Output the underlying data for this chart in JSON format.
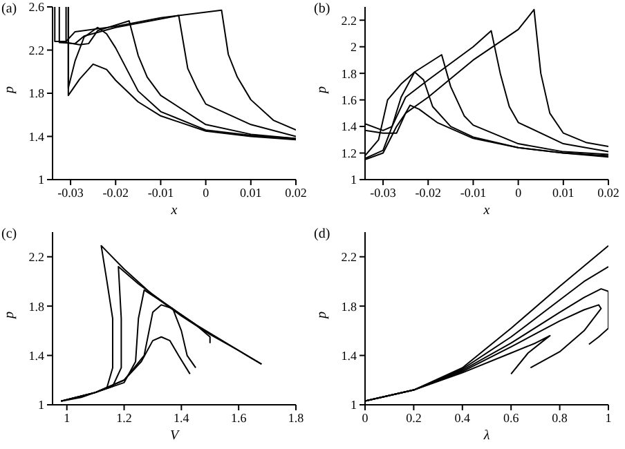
{
  "chart_data": [
    {
      "type": "line",
      "title": "(a)",
      "xlabel": "x",
      "ylabel": "p",
      "xlim": [
        -0.034,
        0.02
      ],
      "ylim": [
        1,
        2.6
      ],
      "xticks": [
        -0.03,
        -0.02,
        -0.01,
        0,
        0.01,
        0.02
      ],
      "yticks": [
        1,
        1.4,
        1.8,
        2.2,
        2.6
      ],
      "series": [
        {
          "color": "#000000",
          "x": [
            -0.0305,
            -0.0305,
            -0.028,
            -0.025,
            -0.022,
            -0.02,
            -0.015,
            -0.01,
            0,
            0.01,
            0.02
          ],
          "values": [
            2.6,
            1.78,
            1.93,
            2.07,
            2.02,
            1.92,
            1.72,
            1.59,
            1.45,
            1.4,
            1.37
          ]
        },
        {
          "color": "#000000",
          "x": [
            -0.0305,
            -0.0305,
            -0.029,
            -0.027,
            -0.024,
            -0.022,
            -0.02,
            -0.015,
            -0.01,
            0,
            0.01,
            0.02
          ],
          "values": [
            2.6,
            1.85,
            2.1,
            2.32,
            2.41,
            2.35,
            2.22,
            1.82,
            1.63,
            1.46,
            1.41,
            1.38
          ]
        },
        {
          "color": "#000000",
          "x": [
            -0.031,
            -0.031,
            -0.028,
            -0.026,
            -0.024,
            -0.017,
            -0.015,
            -0.013,
            -0.01,
            0,
            0.01,
            0.02
          ],
          "values": [
            2.6,
            2.27,
            2.25,
            2.26,
            2.38,
            2.47,
            2.15,
            1.95,
            1.78,
            1.51,
            1.42,
            1.38
          ]
        },
        {
          "color": "#000000",
          "x": [
            -0.0325,
            -0.0325,
            -0.029,
            -0.027,
            -0.02,
            -0.006,
            -0.004,
            -0.002,
            0,
            0.01,
            0.02
          ],
          "values": [
            2.6,
            2.27,
            2.26,
            2.33,
            2.41,
            2.52,
            2.03,
            1.85,
            1.7,
            1.51,
            1.4
          ]
        },
        {
          "color": "#000000",
          "x": [
            -0.0335,
            -0.0335,
            -0.031,
            -0.029,
            -0.02,
            -0.01,
            0.0035,
            0.005,
            0.007,
            0.01,
            0.015,
            0.02
          ],
          "values": [
            2.6,
            2.28,
            2.28,
            2.37,
            2.42,
            2.5,
            2.57,
            2.16,
            1.95,
            1.74,
            1.55,
            1.46
          ]
        }
      ]
    },
    {
      "type": "line",
      "title": "(b)",
      "xlabel": "x",
      "ylabel": "p",
      "xlim": [
        -0.034,
        0.02
      ],
      "ylim": [
        1,
        2.3
      ],
      "xticks": [
        -0.03,
        -0.02,
        -0.01,
        0,
        0.01,
        0.02
      ],
      "yticks": [
        1,
        1.2,
        1.4,
        1.6,
        1.8,
        2,
        2.2
      ],
      "series": [
        {
          "color": "#000000",
          "x": [
            -0.034,
            -0.03,
            -0.027,
            -0.025,
            -0.024,
            -0.022,
            -0.018,
            -0.01,
            0,
            0.01,
            0.02
          ],
          "values": [
            1.37,
            1.35,
            1.35,
            1.5,
            1.56,
            1.53,
            1.43,
            1.31,
            1.24,
            1.2,
            1.17
          ]
        },
        {
          "color": "#000000",
          "x": [
            -0.034,
            -0.03,
            -0.028,
            -0.026,
            -0.023,
            -0.021,
            -0.019,
            -0.015,
            -0.01,
            0,
            0.01,
            0.02
          ],
          "values": [
            1.42,
            1.37,
            1.4,
            1.62,
            1.81,
            1.75,
            1.55,
            1.4,
            1.32,
            1.24,
            1.2,
            1.18
          ]
        },
        {
          "color": "#000000",
          "x": [
            -0.034,
            -0.031,
            -0.029,
            -0.026,
            -0.023,
            -0.017,
            -0.015,
            -0.012,
            -0.01,
            0,
            0.01,
            0.02
          ],
          "values": [
            1.18,
            1.3,
            1.6,
            1.72,
            1.81,
            1.94,
            1.7,
            1.48,
            1.41,
            1.27,
            1.21,
            1.19
          ]
        },
        {
          "color": "#000000",
          "x": [
            -0.034,
            -0.03,
            -0.028,
            -0.025,
            -0.02,
            -0.01,
            -0.006,
            -0.004,
            -0.002,
            0,
            0.01,
            0.02
          ],
          "values": [
            1.16,
            1.22,
            1.4,
            1.62,
            1.75,
            2.0,
            2.12,
            1.8,
            1.55,
            1.43,
            1.27,
            1.21
          ]
        },
        {
          "color": "#000000",
          "x": [
            -0.034,
            -0.03,
            -0.027,
            -0.025,
            -0.02,
            -0.01,
            0,
            0.0035,
            0.005,
            0.007,
            0.01,
            0.015,
            0.02
          ],
          "values": [
            1.15,
            1.2,
            1.4,
            1.5,
            1.62,
            1.9,
            2.13,
            2.28,
            1.8,
            1.5,
            1.35,
            1.28,
            1.25
          ]
        }
      ]
    },
    {
      "type": "line",
      "title": "(c)",
      "xlabel": "V",
      "ylabel": "p",
      "xlim": [
        0.95,
        1.8
      ],
      "ylim": [
        1,
        2.4
      ],
      "xticks": [
        1,
        1.2,
        1.4,
        1.6,
        1.8
      ],
      "yticks": [
        1,
        1.4,
        1.8,
        2.2
      ],
      "series": [
        {
          "color": "#000000",
          "x": [
            0.98,
            1.1,
            1.2,
            1.26,
            1.3,
            1.33,
            1.36,
            1.39,
            1.43
          ],
          "values": [
            1.03,
            1.1,
            1.2,
            1.35,
            1.52,
            1.55,
            1.52,
            1.4,
            1.25
          ]
        },
        {
          "color": "#000000",
          "x": [
            0.98,
            1.1,
            1.2,
            1.27,
            1.3,
            1.33,
            1.37,
            1.4,
            1.42,
            1.45
          ],
          "values": [
            1.03,
            1.1,
            1.2,
            1.4,
            1.75,
            1.81,
            1.78,
            1.6,
            1.4,
            1.3
          ]
        },
        {
          "color": "#000000",
          "x": [
            0.98,
            1.1,
            1.2,
            1.24,
            1.25,
            1.27,
            1.35,
            1.45,
            1.5,
            1.5
          ],
          "values": [
            1.03,
            1.1,
            1.18,
            1.35,
            1.7,
            1.93,
            1.81,
            1.65,
            1.55,
            1.5
          ]
        },
        {
          "color": "#000000",
          "x": [
            0.98,
            1.1,
            1.16,
            1.19,
            1.19,
            1.18,
            1.25,
            1.35,
            1.45,
            1.55,
            1.65,
            1.68
          ],
          "values": [
            1.03,
            1.1,
            1.15,
            1.3,
            1.7,
            2.12,
            1.98,
            1.81,
            1.65,
            1.51,
            1.37,
            1.33
          ]
        },
        {
          "color": "#000000",
          "x": [
            0.98,
            1.05,
            1.1,
            1.14,
            1.16,
            1.16,
            1.14,
            1.12,
            1.2,
            1.3,
            1.4,
            1.5,
            1.6,
            1.68
          ],
          "values": [
            1.03,
            1.06,
            1.1,
            1.14,
            1.3,
            1.7,
            2.0,
            2.29,
            2.1,
            1.89,
            1.72,
            1.57,
            1.44,
            1.33
          ]
        }
      ]
    },
    {
      "type": "line",
      "title": "(d)",
      "xlabel": "λ",
      "ylabel": "p",
      "xlim": [
        0,
        1
      ],
      "ylim": [
        1,
        2.4
      ],
      "xticks": [
        0,
        0.2,
        0.4,
        0.6,
        0.8,
        1
      ],
      "yticks": [
        1,
        1.4,
        1.8,
        2.2
      ],
      "series": [
        {
          "color": "#000000",
          "x": [
            0,
            0.2,
            0.4,
            0.6,
            0.7,
            0.76,
            0.74,
            0.67,
            0.6
          ],
          "values": [
            1.03,
            1.12,
            1.26,
            1.42,
            1.5,
            1.56,
            1.53,
            1.42,
            1.25
          ]
        },
        {
          "color": "#000000",
          "x": [
            0,
            0.2,
            0.4,
            0.6,
            0.8,
            0.9,
            0.96,
            0.97,
            0.9,
            0.8,
            0.68
          ],
          "values": [
            1.03,
            1.12,
            1.27,
            1.47,
            1.68,
            1.77,
            1.81,
            1.78,
            1.6,
            1.43,
            1.3
          ]
        },
        {
          "color": "#000000",
          "x": [
            0,
            0.2,
            0.4,
            0.6,
            0.8,
            0.9,
            0.97,
            1,
            1,
            0.96,
            0.92
          ],
          "values": [
            1.03,
            1.12,
            1.28,
            1.5,
            1.75,
            1.87,
            1.94,
            1.92,
            1.62,
            1.55,
            1.49
          ]
        },
        {
          "color": "#000000",
          "x": [
            0,
            0.2,
            0.4,
            0.6,
            0.8,
            0.9,
            1
          ],
          "values": [
            1.03,
            1.12,
            1.29,
            1.55,
            1.85,
            2.0,
            2.12
          ]
        },
        {
          "color": "#000000",
          "x": [
            0,
            0.2,
            0.4,
            0.6,
            0.8,
            1
          ],
          "values": [
            1.03,
            1.12,
            1.3,
            1.62,
            1.96,
            2.29
          ]
        }
      ]
    }
  ]
}
